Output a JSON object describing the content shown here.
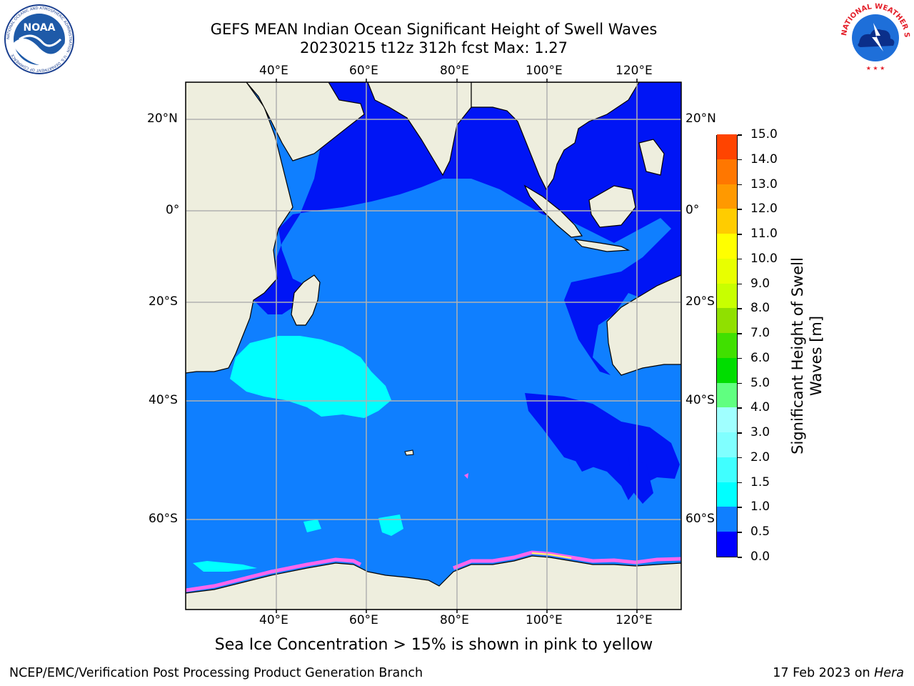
{
  "title": {
    "line1": "GEFS MEAN Indian Ocean Significant Height of Swell Waves",
    "line2": "20230215 t12z 312h fcst   Max: 1.27"
  },
  "logos": {
    "left": {
      "name": "NOAA",
      "ring_text": "NATIONAL OCEANIC AND ATMOSPHERIC ADMINISTRATION · U.S. DEPARTMENT OF COMMERCE"
    },
    "right": {
      "name": "NATIONAL WEATHER SERVICE"
    }
  },
  "map": {
    "lon_ticks": [
      "40°E",
      "60°E",
      "80°E",
      "100°E",
      "120°E"
    ],
    "lat_ticks": [
      "20°N",
      "0°",
      "20°S",
      "40°S",
      "60°S"
    ],
    "colors": {
      "ocean_main": "#0f7fff",
      "ocean_low": "#0015f5",
      "ocean_high": "#00ffff",
      "land": "#eeeede",
      "ice": "#ff66ee"
    }
  },
  "colorbar": {
    "label_line1": "Significant Height of Swell",
    "label_line2": "Waves [m]",
    "ticks": [
      "0.0",
      "0.5",
      "1.0",
      "1.5",
      "2.0",
      "3.0",
      "4.0",
      "5.0",
      "6.0",
      "7.0",
      "8.0",
      "9.0",
      "10.0",
      "11.0",
      "12.0",
      "13.0",
      "14.0",
      "15.0"
    ],
    "colors": [
      "#0000ff",
      "#0f7fff",
      "#00ffff",
      "#40ffff",
      "#80ffff",
      "#a0ffff",
      "#60ff80",
      "#00dd00",
      "#40e000",
      "#90e000",
      "#c8ff00",
      "#e8ff00",
      "#ffff00",
      "#ffcc00",
      "#ff9900",
      "#ff7700",
      "#ff4400",
      "#ff1a00",
      "#ff0000"
    ]
  },
  "note": "Sea Ice Concentration > 15% is shown in pink to yellow",
  "footer": {
    "left": "NCEP/EMC/Verification Post Processing Product Generation Branch",
    "right_date": "17 Feb 2023 on ",
    "right_host": "Hera"
  }
}
